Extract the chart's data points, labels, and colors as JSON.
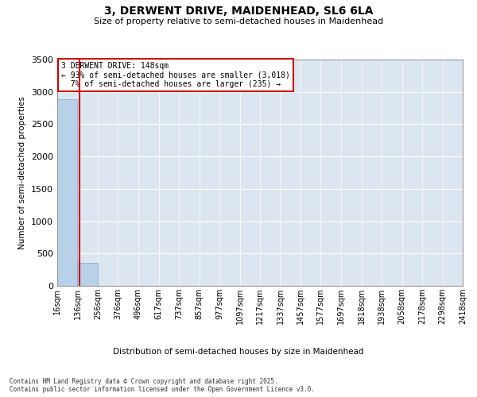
{
  "title_line1": "3, DERWENT DRIVE, MAIDENHEAD, SL6 6LA",
  "title_line2": "Size of property relative to semi-detached houses in Maidenhead",
  "xlabel": "Distribution of semi-detached houses by size in Maidenhead",
  "ylabel": "Number of semi-detached properties",
  "footer": "Contains HM Land Registry data © Crown copyright and database right 2025.\nContains public sector information licensed under the Open Government Licence v3.0.",
  "annotation_line1": "3 DERWENT DRIVE: 148sqm",
  "annotation_line2": "← 93% of semi-detached houses are smaller (3,018)",
  "annotation_line3": "  7% of semi-detached houses are larger (235) →",
  "property_size": 148,
  "bar_color": "#b8d0e8",
  "bar_edge_color": "#7aaac8",
  "vline_color": "#cc0000",
  "annotation_box_color": "#cc0000",
  "background_color": "#dce6f0",
  "grid_color": "#ffffff",
  "bin_edges": [
    16,
    136,
    256,
    376,
    496,
    617,
    737,
    857,
    977,
    1097,
    1217,
    1337,
    1457,
    1577,
    1697,
    1818,
    1938,
    2058,
    2178,
    2298,
    2418
  ],
  "bin_labels": [
    "16sqm",
    "136sqm",
    "256sqm",
    "376sqm",
    "496sqm",
    "617sqm",
    "737sqm",
    "857sqm",
    "977sqm",
    "1097sqm",
    "1217sqm",
    "1337sqm",
    "1457sqm",
    "1577sqm",
    "1697sqm",
    "1818sqm",
    "1938sqm",
    "2058sqm",
    "2178sqm",
    "2298sqm",
    "2418sqm"
  ],
  "bar_heights": [
    2890,
    360,
    3,
    0,
    0,
    0,
    0,
    0,
    0,
    0,
    0,
    0,
    0,
    0,
    0,
    0,
    0,
    0,
    0,
    0
  ],
  "ylim": [
    0,
    3500
  ],
  "yticks": [
    0,
    500,
    1000,
    1500,
    2000,
    2500,
    3000,
    3500
  ]
}
